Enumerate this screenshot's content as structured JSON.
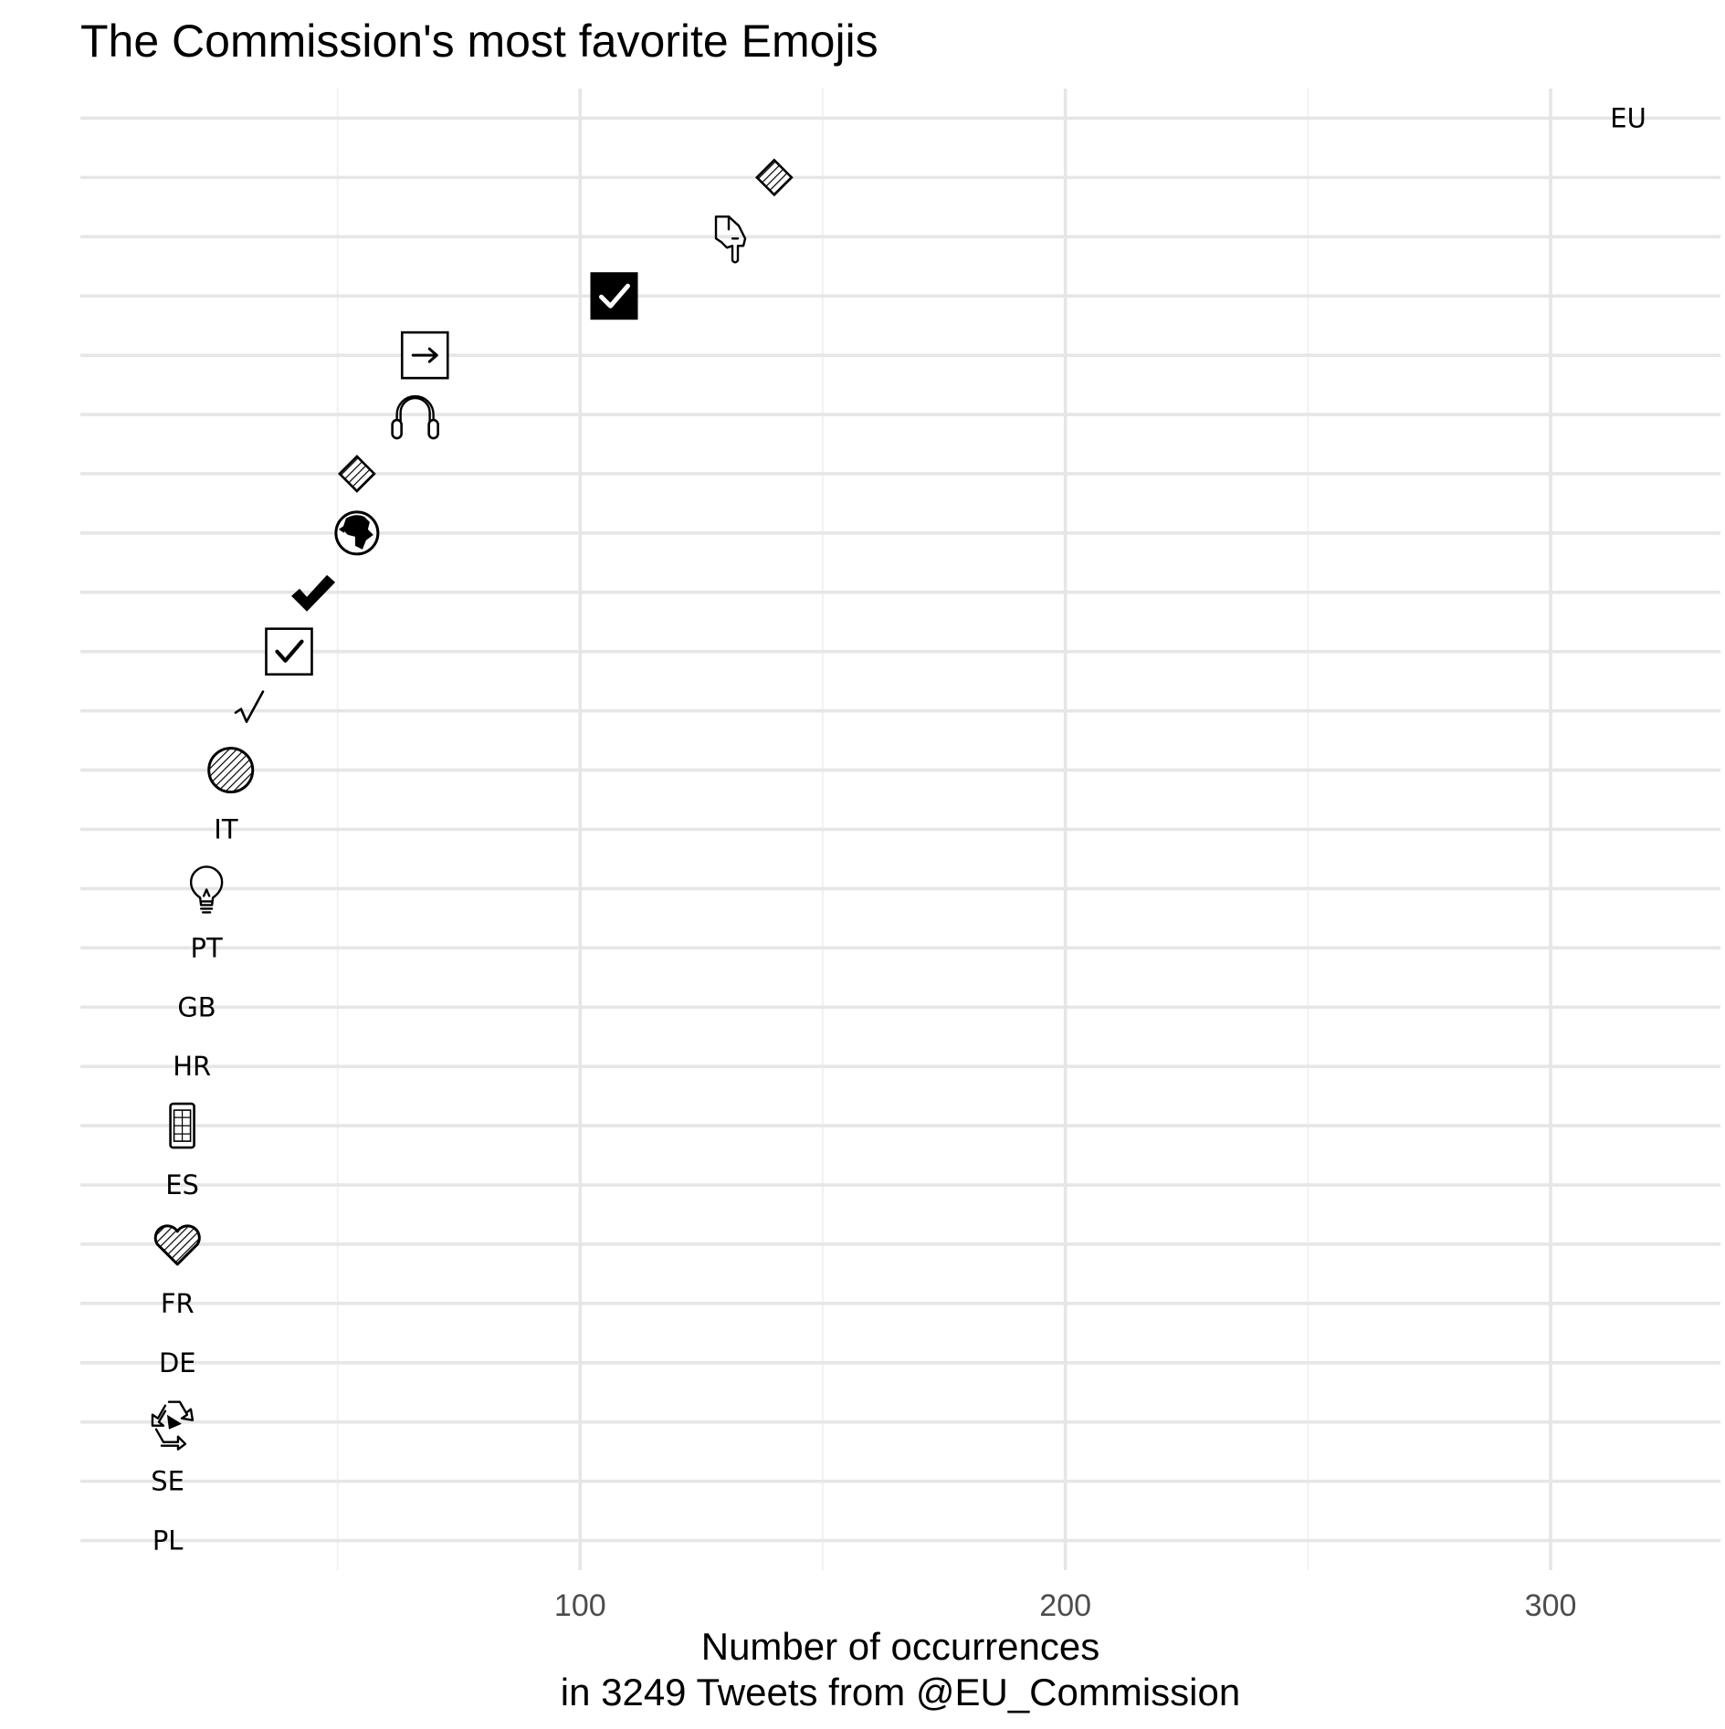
{
  "chart_data": {
    "type": "scatter",
    "title": "The Commission's most favorite Emojis",
    "xlabel": [
      "Number of occurrences",
      "in 3249 Tweets from @EU_Commission"
    ],
    "ylabel": "",
    "xlim": [
      -3,
      335
    ],
    "x_major_ticks": [
      100,
      200,
      300
    ],
    "x_minor_ticks": [
      50,
      150,
      250
    ],
    "grid": "on",
    "legend": "none",
    "points": [
      {
        "label": "EU",
        "kind": "text",
        "x": 316
      },
      {
        "label": "diamond",
        "kind": "icon",
        "icon": "diamond-hatched-icon",
        "x": 140
      },
      {
        "label": "pointing down",
        "kind": "icon",
        "icon": "pointing-down-hand-icon",
        "x": 131
      },
      {
        "label": "check box filled",
        "kind": "icon",
        "icon": "check-box-filled-icon",
        "x": 107
      },
      {
        "label": "arrow box",
        "kind": "icon",
        "icon": "arrow-right-box-icon",
        "x": 68
      },
      {
        "label": "headphones",
        "kind": "icon",
        "icon": "headphones-icon",
        "x": 66
      },
      {
        "label": "small diamond",
        "kind": "icon",
        "icon": "diamond-hatched-icon",
        "x": 54
      },
      {
        "label": "globe",
        "kind": "icon",
        "icon": "globe-africa-icon",
        "x": 54
      },
      {
        "label": "heavy check",
        "kind": "icon",
        "icon": "heavy-check-icon",
        "x": 45
      },
      {
        "label": "ballot check",
        "kind": "icon",
        "icon": "ballot-box-check-icon",
        "x": 40
      },
      {
        "label": "check mark",
        "kind": "icon",
        "icon": "check-mark-icon",
        "x": 32
      },
      {
        "label": "circle",
        "kind": "icon",
        "icon": "circle-hatched-icon",
        "x": 28
      },
      {
        "label": "IT",
        "kind": "text",
        "x": 27
      },
      {
        "label": "bulb",
        "kind": "icon",
        "icon": "light-bulb-icon",
        "x": 23
      },
      {
        "label": "PT",
        "kind": "text",
        "x": 23
      },
      {
        "label": "GB",
        "kind": "text",
        "x": 21
      },
      {
        "label": "HR",
        "kind": "text",
        "x": 20
      },
      {
        "label": "phone",
        "kind": "icon",
        "icon": "mobile-phone-icon",
        "x": 18
      },
      {
        "label": "ES",
        "kind": "text",
        "x": 18
      },
      {
        "label": "heart",
        "kind": "icon",
        "icon": "heart-hatched-icon",
        "x": 17
      },
      {
        "label": "FR",
        "kind": "text",
        "x": 17
      },
      {
        "label": "DE",
        "kind": "text",
        "x": 17
      },
      {
        "label": "recycle",
        "kind": "icon",
        "icon": "recycle-icon",
        "x": 16
      },
      {
        "label": "SE",
        "kind": "text",
        "x": 15
      },
      {
        "label": "PL",
        "kind": "text",
        "x": 15
      }
    ]
  }
}
